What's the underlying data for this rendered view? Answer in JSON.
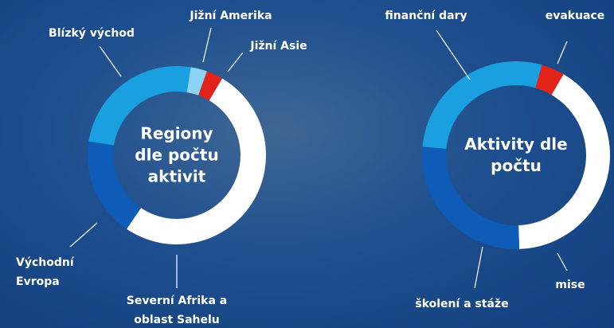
{
  "chart_data": [
    {
      "type": "pie",
      "title": "Regiony dle počtu aktivit",
      "categories": [
        "Jižní Amerika",
        "Jižní Asie",
        "Severní Afrika a oblast Sahelu",
        "Východní Evropa",
        "Blízký východ"
      ],
      "values": [
        3,
        3,
        51,
        18,
        25
      ],
      "colors": [
        "#8dd3f5",
        "#e2231a",
        "#ffffff",
        "#0f5cb8",
        "#1a9fe0"
      ]
    },
    {
      "type": "pie",
      "title": "Aktivity dle počtu",
      "categories": [
        "evakuace",
        "mise",
        "školení a stáže",
        "finanční dary"
      ],
      "values": [
        4,
        41,
        27,
        28
      ],
      "colors": [
        "#e2231a",
        "#ffffff",
        "#0f5cb8",
        "#1a9fe0"
      ]
    }
  ]
}
